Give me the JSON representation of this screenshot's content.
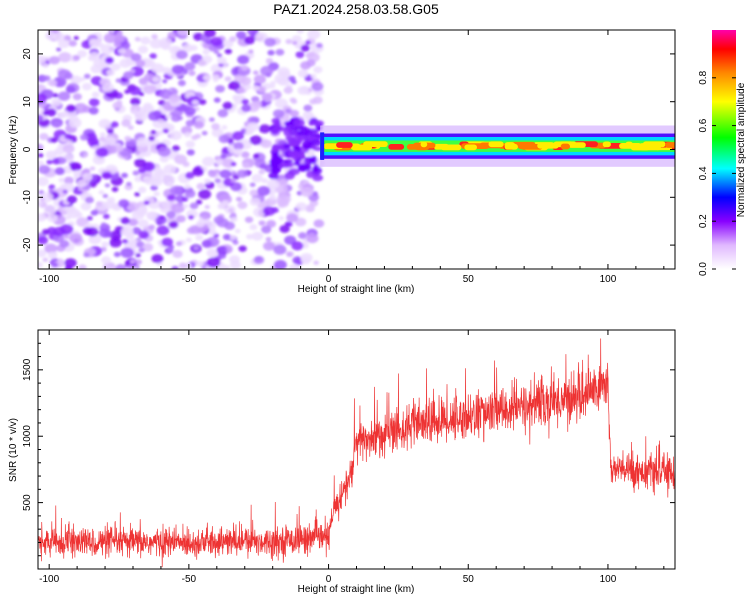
{
  "title": "PAZ1.2024.258.03.58.G05",
  "chart_data": [
    {
      "type": "heatmap",
      "xlabel": "Height of straight line (km)",
      "ylabel": "Frequency (Hz)",
      "xlim": [
        -104,
        124
      ],
      "ylim": [
        -25,
        25
      ],
      "xticks": [
        -100,
        -50,
        0,
        50,
        100
      ],
      "yticks": [
        -20,
        -10,
        0,
        10,
        20
      ],
      "colorbar": {
        "label": "Normalized spectral amplitude",
        "range": [
          0,
          1
        ],
        "ticks": [
          0.0,
          0.2,
          0.4,
          0.6,
          0.8
        ]
      },
      "noise_region_x": [
        -104,
        -3
      ],
      "signal_band": {
        "x": [
          -3,
          124
        ],
        "center_freq": 0.7,
        "half_width": 1.2,
        "peak_amplitude": 1.0
      }
    },
    {
      "type": "line",
      "xlabel": "Height of straight line (km)",
      "ylabel": "SNR (10 * v/v)",
      "xlim": [
        -104,
        124
      ],
      "ylim": [
        0,
        1800
      ],
      "xticks": [
        -100,
        -50,
        0,
        50,
        100
      ],
      "yticks": [
        500,
        1000,
        1500
      ],
      "line_color": "#ee3333",
      "profile": [
        {
          "x": -104,
          "y": 200,
          "spread": 160
        },
        {
          "x": -80,
          "y": 200,
          "spread": 170
        },
        {
          "x": -50,
          "y": 200,
          "spread": 170
        },
        {
          "x": -20,
          "y": 210,
          "spread": 170
        },
        {
          "x": 0,
          "y": 240,
          "spread": 170
        },
        {
          "x": 2,
          "y": 450,
          "spread": 180
        },
        {
          "x": 8,
          "y": 700,
          "spread": 220
        },
        {
          "x": 10,
          "y": 950,
          "spread": 250
        },
        {
          "x": 30,
          "y": 1080,
          "spread": 260
        },
        {
          "x": 50,
          "y": 1150,
          "spread": 270
        },
        {
          "x": 70,
          "y": 1220,
          "spread": 280
        },
        {
          "x": 90,
          "y": 1300,
          "spread": 300
        },
        {
          "x": 100,
          "y": 1400,
          "spread": 300
        },
        {
          "x": 101,
          "y": 750,
          "spread": 200
        },
        {
          "x": 124,
          "y": 720,
          "spread": 200
        }
      ]
    }
  ]
}
